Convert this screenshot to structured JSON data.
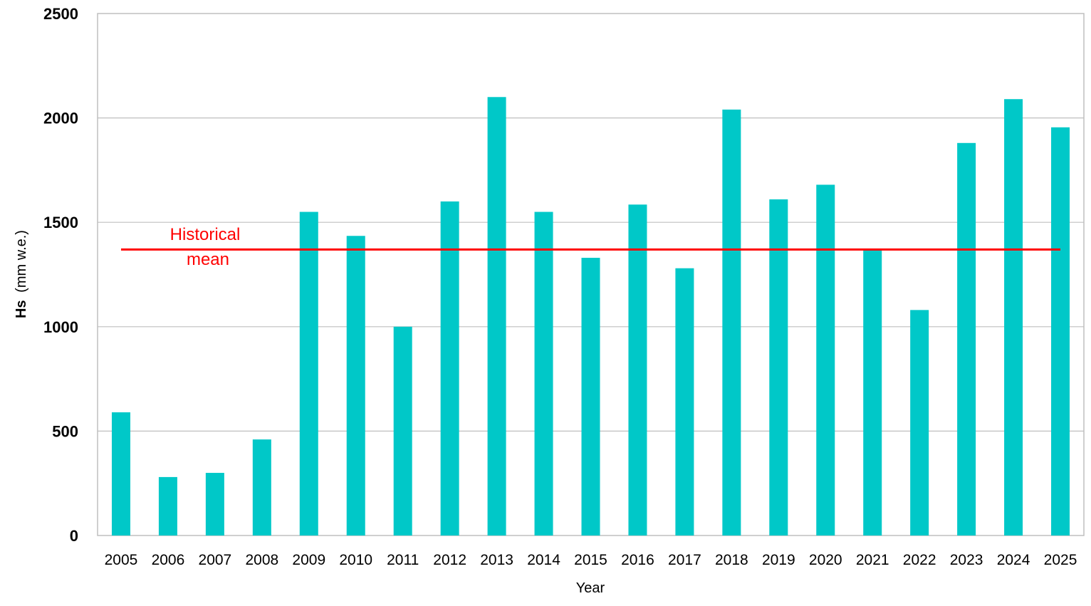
{
  "chart_data": {
    "type": "bar",
    "title": "",
    "xlabel": "Year",
    "ylabel_main": "Hs",
    "ylabel_unit": "(mm w.e.)",
    "ylim": [
      0,
      2500
    ],
    "yticks": [
      0,
      500,
      1000,
      1500,
      2000,
      2500
    ],
    "grid": true,
    "categories": [
      "2005",
      "2006",
      "2007",
      "2008",
      "2009",
      "2010",
      "2011",
      "2012",
      "2013",
      "2014",
      "2015",
      "2016",
      "2017",
      "2018",
      "2019",
      "2020",
      "2021",
      "2022",
      "2023",
      "2024",
      "2025"
    ],
    "values": [
      590,
      280,
      300,
      460,
      1550,
      1435,
      1000,
      1600,
      2100,
      1550,
      1330,
      1585,
      1280,
      2040,
      1610,
      1680,
      1370,
      1080,
      1880,
      2090,
      1955
    ],
    "bar_color": "#00c8c8",
    "mean": {
      "value": 1370,
      "label_line1": "Historical",
      "label_line2": "mean",
      "color": "#ff0000"
    }
  }
}
